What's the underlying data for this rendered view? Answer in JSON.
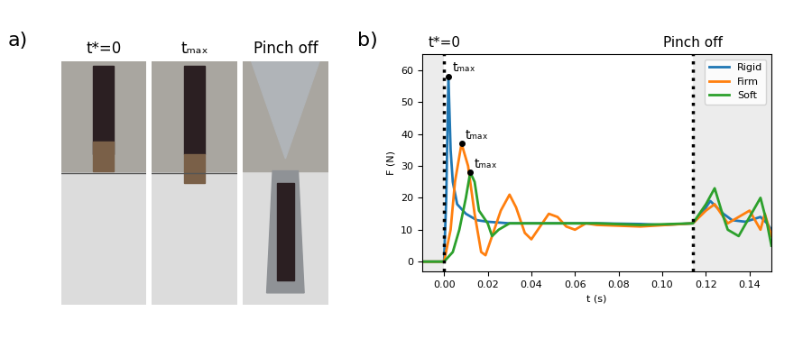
{
  "panel_a": {
    "label": "a)",
    "images": [
      "t*=0",
      "tₘₐₓ",
      "Pinch off"
    ]
  },
  "chart_data": {
    "type": "line",
    "panel_label": "b)",
    "x_label": "t (s)",
    "y_label": "F (N)",
    "xlim": [
      -0.01,
      0.15
    ],
    "ylim": [
      -3,
      65
    ],
    "xticks": [
      {
        "value": 0.0,
        "label": "0.00"
      },
      {
        "value": 0.02,
        "label": "0.02"
      },
      {
        "value": 0.04,
        "label": "0.04"
      },
      {
        "value": 0.06,
        "label": "0.06"
      },
      {
        "value": 0.08,
        "label": "0.08"
      },
      {
        "value": 0.1,
        "label": "0.10"
      },
      {
        "value": 0.12,
        "label": "0.12"
      },
      {
        "value": 0.14,
        "label": "0.14"
      }
    ],
    "yticks": [
      0,
      10,
      20,
      30,
      40,
      50,
      60
    ],
    "legend": "upper right",
    "events": [
      {
        "x": 0.0,
        "label": "t*=0"
      },
      {
        "x": 0.114,
        "label": "Pinch off"
      }
    ],
    "annotations": [
      {
        "x": 0.002,
        "y": 58,
        "text": "tₘₐₓ"
      },
      {
        "x": 0.008,
        "y": 37,
        "text": "tₘₐₓ"
      },
      {
        "x": 0.012,
        "y": 28,
        "text": "tₘₐₓ"
      }
    ],
    "series": [
      {
        "name": "Rigid",
        "color": "#1f77b4",
        "x": [
          -0.01,
          0.0,
          0.001,
          0.002,
          0.003,
          0.004,
          0.006,
          0.01,
          0.015,
          0.02,
          0.03,
          0.05,
          0.07,
          0.09,
          0.1,
          0.114,
          0.118,
          0.122,
          0.128,
          0.132,
          0.138,
          0.145,
          0.148,
          0.15
        ],
        "values": [
          0,
          0,
          20,
          58,
          35,
          25,
          18,
          15,
          13,
          12.5,
          12,
          12,
          12,
          11.8,
          11.5,
          12,
          15,
          19,
          15,
          13,
          12.5,
          14,
          12,
          10
        ]
      },
      {
        "name": "Firm",
        "color": "#ff7f0e",
        "x": [
          -0.01,
          0.0,
          0.003,
          0.005,
          0.008,
          0.011,
          0.014,
          0.017,
          0.019,
          0.022,
          0.026,
          0.03,
          0.033,
          0.037,
          0.04,
          0.043,
          0.048,
          0.052,
          0.056,
          0.06,
          0.065,
          0.07,
          0.09,
          0.114,
          0.12,
          0.124,
          0.13,
          0.135,
          0.14,
          0.145,
          0.147,
          0.15
        ],
        "values": [
          0,
          0,
          10,
          25,
          37,
          30,
          15,
          3,
          2,
          8,
          16,
          21,
          17,
          9,
          7,
          10,
          15,
          14,
          11,
          10,
          12,
          11.5,
          11,
          12,
          16,
          18,
          12,
          14,
          16,
          10,
          15,
          8
        ]
      },
      {
        "name": "Soft",
        "color": "#2ca02c",
        "x": [
          -0.01,
          0.0,
          0.004,
          0.007,
          0.01,
          0.012,
          0.014,
          0.016,
          0.018,
          0.02,
          0.022,
          0.025,
          0.03,
          0.05,
          0.07,
          0.09,
          0.114,
          0.12,
          0.124,
          0.128,
          0.13,
          0.135,
          0.14,
          0.145,
          0.148,
          0.15
        ],
        "values": [
          0,
          0,
          3,
          10,
          20,
          28,
          25,
          16,
          14,
          12,
          8,
          10,
          12,
          12,
          12,
          11.5,
          12,
          18,
          23,
          14,
          10,
          8,
          14,
          20,
          12,
          5
        ]
      }
    ]
  }
}
